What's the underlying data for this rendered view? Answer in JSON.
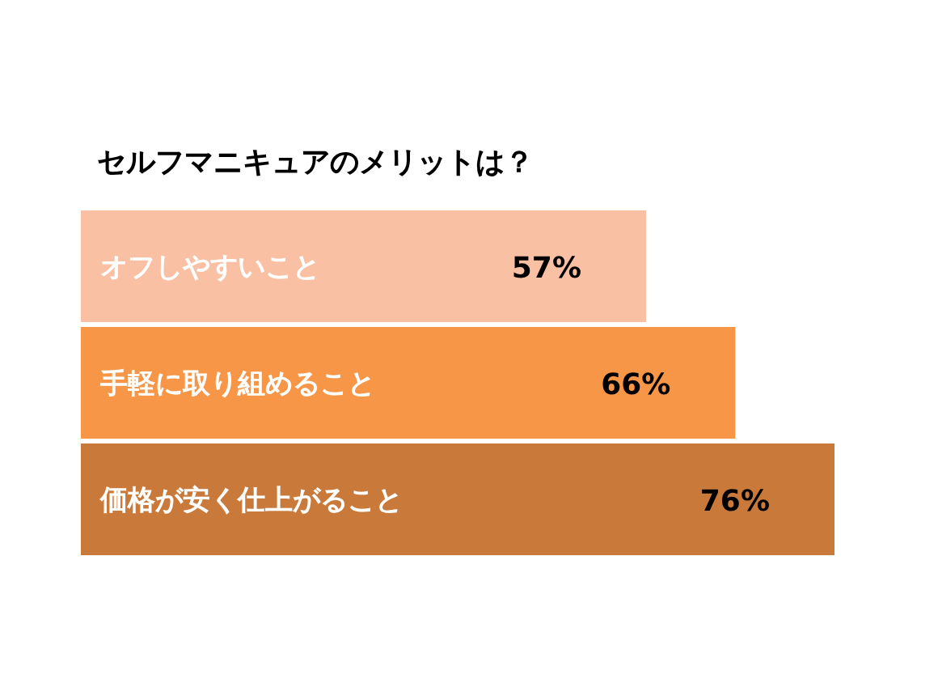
{
  "chart_data": {
    "type": "bar",
    "orientation": "horizontal",
    "title": "セルフマニキュアのメリットは？",
    "categories": [
      "オフしやすいこと",
      "手軽に取り組めること",
      "価格が安く仕上がること"
    ],
    "values": [
      57,
      66,
      76
    ],
    "value_labels": [
      "57%",
      "66%",
      "76%"
    ],
    "colors": [
      "#fac0a4",
      "#f79646",
      "#c97a3a"
    ]
  }
}
